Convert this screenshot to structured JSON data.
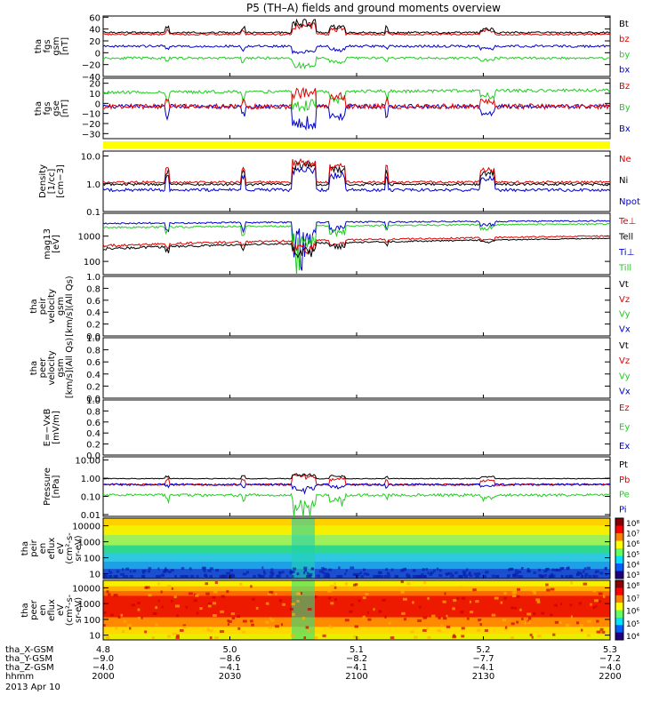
{
  "title": "P5 (TH–A) fields and ground moments overview",
  "colors": {
    "black": "#000000",
    "red": "#e00000",
    "green": "#22cc22",
    "blue": "#0000cc",
    "yellow": "#ffff00"
  },
  "panels": [
    {
      "id": "fgs_gsm",
      "ylabel": [
        "tha",
        "fgs",
        "gsm",
        "[nT]"
      ],
      "ticks": [
        "60",
        "40",
        "20",
        "0",
        "−20",
        "−40"
      ],
      "ylim": [
        -40,
        62
      ],
      "scale": "linear",
      "legend": [
        {
          "text": "Bt",
          "color": "black"
        },
        {
          "text": "bz",
          "color": "red"
        },
        {
          "text": "by",
          "color": "green"
        },
        {
          "text": "bx",
          "color": "blue"
        }
      ]
    },
    {
      "id": "fgs_gse",
      "ylabel": [
        "tha",
        "fgs",
        "gse",
        "[nT]"
      ],
      "ticks": [
        "20",
        "10",
        "0",
        "−10",
        "−20",
        "−30"
      ],
      "ylim": [
        -35,
        25
      ],
      "scale": "linear",
      "legend": [
        {
          "text": "Bz",
          "color": "red"
        },
        {
          "text": "By",
          "color": "green"
        },
        {
          "text": "Bx",
          "color": "blue"
        }
      ]
    },
    {
      "id": "density",
      "ylabel": [
        "Density",
        "[1/cc]",
        "[cm−3]"
      ],
      "ticks": [
        "10.0",
        "1.0",
        "0.1"
      ],
      "ylim": [
        0.1,
        15
      ],
      "scale": "log",
      "legend": [
        {
          "text": "Ne",
          "color": "red"
        },
        {
          "text": "Ni",
          "color": "black"
        },
        {
          "text": "Npot",
          "color": "blue"
        }
      ]
    },
    {
      "id": "temp",
      "ylabel": [
        "mag13",
        "[eV]"
      ],
      "ticks": [
        "1000",
        "100"
      ],
      "ylim": [
        30,
        8000
      ],
      "scale": "log",
      "legend": [
        {
          "text": "Te⊥",
          "color": "red"
        },
        {
          "text": "Tell",
          "color": "black"
        },
        {
          "text": "Ti⊥",
          "color": "blue"
        },
        {
          "text": "Till",
          "color": "green"
        }
      ]
    },
    {
      "id": "peir_vel",
      "ylabel": [
        "tha",
        "peir",
        "velocity",
        "gsm",
        "[km/s](All Qs)"
      ],
      "ticks": [
        "1.0",
        "0.8",
        "0.6",
        "0.4",
        "0.2",
        "0.0"
      ],
      "ylim": [
        0,
        1
      ],
      "scale": "linear",
      "legend": [
        {
          "text": "Vt",
          "color": "black"
        },
        {
          "text": "Vz",
          "color": "red"
        },
        {
          "text": "Vy",
          "color": "green"
        },
        {
          "text": "Vx",
          "color": "blue"
        }
      ]
    },
    {
      "id": "peer_vel",
      "ylabel": [
        "tha",
        "peer",
        "velocity",
        "gsm",
        "[km/s](All Qs)"
      ],
      "ticks": [
        "1.0",
        "0.8",
        "0.6",
        "0.4",
        "0.2",
        "0.0"
      ],
      "ylim": [
        0,
        1
      ],
      "scale": "linear",
      "legend": [
        {
          "text": "Vt",
          "color": "black"
        },
        {
          "text": "Vz",
          "color": "red"
        },
        {
          "text": "Vy",
          "color": "green"
        },
        {
          "text": "Vx",
          "color": "blue"
        }
      ]
    },
    {
      "id": "efield",
      "ylabel": [
        "E=−VxB",
        "[mV/m]"
      ],
      "ticks": [
        "1.0",
        "0.8",
        "0.6",
        "0.4",
        "0.2",
        "0.0"
      ],
      "ylim": [
        0,
        1
      ],
      "scale": "linear",
      "legend": [
        {
          "text": "Ez",
          "color": "red"
        },
        {
          "text": "Ey",
          "color": "green"
        },
        {
          "text": "Ex",
          "color": "blue"
        }
      ]
    },
    {
      "id": "pressure",
      "ylabel": [
        "Pressure",
        "[nPa]"
      ],
      "ticks": [
        "10.00",
        "1.00",
        "0.10",
        "0.01"
      ],
      "ylim": [
        0.008,
        15
      ],
      "scale": "log",
      "legend": [
        {
          "text": "Pt",
          "color": "black"
        },
        {
          "text": "Pb",
          "color": "red"
        },
        {
          "text": "Pe",
          "color": "green"
        },
        {
          "text": "Pi",
          "color": "blue"
        }
      ]
    },
    {
      "id": "peir_spec",
      "ylabel": [
        "tha",
        "peir",
        "en",
        "eflux",
        "eV",
        "(cm²-s-",
        "sr-eV)"
      ],
      "ticks": [
        "10000",
        "1000",
        "100",
        "10"
      ],
      "ylim": [
        5,
        30000
      ],
      "scale": "log",
      "colorbar": [
        "10⁸",
        "10⁷",
        "10⁶",
        "10⁵",
        "10⁴",
        "10³"
      ]
    },
    {
      "id": "peer_spec",
      "ylabel": [
        "tha",
        "peer",
        "en",
        "eflux",
        "eV",
        "(cm²-s-",
        "sr-eV)"
      ],
      "ticks": [
        "10000",
        "1000",
        "100",
        "10"
      ],
      "ylim": [
        5,
        30000
      ],
      "scale": "log",
      "colorbar": [
        "10⁸",
        "10⁷",
        "10⁶",
        "10⁵",
        "10⁴"
      ]
    }
  ],
  "xaxis": {
    "rows": [
      {
        "label": "tha_X-GSM",
        "values": [
          "4.8",
          "5.0",
          "5.1",
          "5.2",
          "5.3"
        ]
      },
      {
        "label": "tha_Y-GSM",
        "values": [
          "−9.0",
          "−8.6",
          "−8.2",
          "−7.7",
          "−7.2"
        ]
      },
      {
        "label": "tha_Z-GSM",
        "values": [
          "−4.0",
          "−4.1",
          "−4.1",
          "−4.1",
          "−4.0"
        ]
      },
      {
        "label": "hhmm",
        "values": [
          "2000",
          "2030",
          "2100",
          "2130",
          "2200"
        ]
      }
    ],
    "date": "2013 Apr 10"
  },
  "chart_data": {
    "type": "line",
    "title": "P5 (TH–A) fields and ground moments overview",
    "x": [
      "2000",
      "2030",
      "2100",
      "2130",
      "2200"
    ],
    "xlabel": "hhmm",
    "series": [
      {
        "name": "Bt",
        "panel": "fgs_gsm",
        "values": [
          35,
          32,
          31,
          30,
          30
        ]
      },
      {
        "name": "bz",
        "panel": "fgs_gsm",
        "values": [
          33,
          30,
          29,
          28,
          29
        ]
      },
      {
        "name": "by",
        "panel": "fgs_gsm",
        "values": [
          -8,
          -9,
          -10,
          -11,
          -12
        ]
      },
      {
        "name": "bx",
        "panel": "fgs_gsm",
        "values": [
          10,
          10,
          12,
          12,
          14
        ]
      },
      {
        "name": "Bz",
        "panel": "fgs_gse",
        "values": [
          0,
          5,
          -2,
          -3,
          -2
        ]
      },
      {
        "name": "By",
        "panel": "fgs_gse",
        "values": [
          10,
          12,
          10,
          12,
          12
        ]
      },
      {
        "name": "Bx",
        "panel": "fgs_gse",
        "values": [
          -5,
          -8,
          -3,
          -2,
          -3
        ]
      },
      {
        "name": "Ne",
        "panel": "density",
        "values": [
          1.2,
          1.1,
          1.3,
          1.1,
          1.0
        ]
      },
      {
        "name": "Ni",
        "panel": "density",
        "values": [
          1.0,
          0.9,
          1.1,
          0.9,
          0.9
        ]
      },
      {
        "name": "Npot",
        "panel": "density",
        "values": [
          0.6,
          0.6,
          0.7,
          0.6,
          0.6
        ]
      },
      {
        "name": "Te⊥",
        "panel": "temp",
        "values": [
          400,
          450,
          500,
          550,
          900
        ]
      },
      {
        "name": "Tell",
        "panel": "temp",
        "values": [
          300,
          350,
          400,
          450,
          800
        ]
      },
      {
        "name": "Ti⊥",
        "panel": "temp",
        "values": [
          2500,
          2800,
          3000,
          3500,
          4000
        ]
      },
      {
        "name": "Till",
        "panel": "temp",
        "values": [
          1800,
          2200,
          2500,
          3000,
          3200
        ]
      },
      {
        "name": "Pt",
        "panel": "pressure",
        "values": [
          0.9,
          0.95,
          1.0,
          0.95,
          1.0
        ]
      },
      {
        "name": "Pb",
        "panel": "pressure",
        "values": [
          0.4,
          0.45,
          0.4,
          0.45,
          0.5
        ]
      },
      {
        "name": "Pe",
        "panel": "pressure",
        "values": [
          0.12,
          0.1,
          0.12,
          0.12,
          0.13
        ]
      },
      {
        "name": "Pi",
        "panel": "pressure",
        "values": [
          0.5,
          0.4,
          0.35,
          0.4,
          0.45
        ]
      }
    ]
  }
}
